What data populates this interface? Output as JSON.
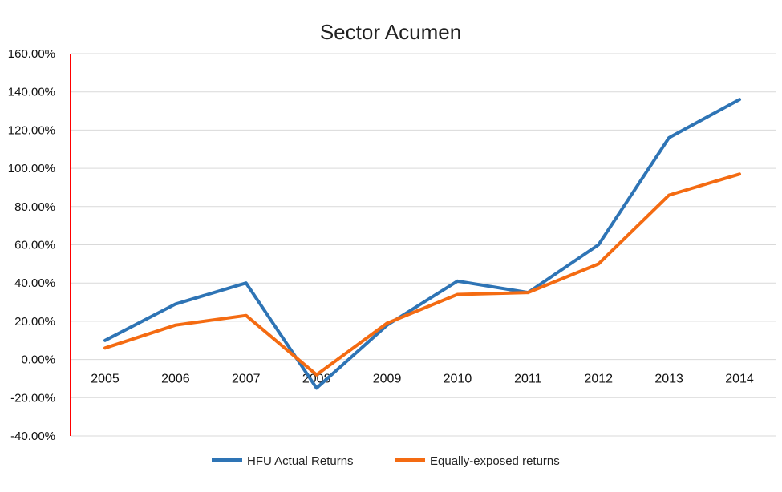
{
  "chart_data": {
    "type": "line",
    "title": "Sector Acumen",
    "xlabel": "",
    "ylabel": "",
    "categories": [
      "2005",
      "2006",
      "2007",
      "2008",
      "2009",
      "2010",
      "2011",
      "2012",
      "2013",
      "2014"
    ],
    "y_ticks": [
      -40,
      -20,
      0,
      20,
      40,
      60,
      80,
      100,
      120,
      140,
      160
    ],
    "y_tick_labels": [
      "-40.00%",
      "-20.00%",
      "0.00%",
      "20.00%",
      "40.00%",
      "60.00%",
      "80.00%",
      "100.00%",
      "120.00%",
      "140.00%",
      "160.00%"
    ],
    "ylim": [
      -40,
      160
    ],
    "y_unit": "percent",
    "grid": "horizontal",
    "legend_position": "bottom",
    "series": [
      {
        "name": "HFU Actual Returns",
        "color": "#2e74b5",
        "values": [
          10,
          29,
          40,
          -15,
          18,
          41,
          35,
          60,
          116,
          136
        ]
      },
      {
        "name": "Equally-exposed returns",
        "color": "#f46b12",
        "values": [
          6,
          18,
          23,
          -8,
          19,
          34,
          35,
          50,
          86,
          97
        ]
      }
    ],
    "y_axis_line_color": "#ff0000",
    "gridline_color": "#d9d9d9"
  }
}
